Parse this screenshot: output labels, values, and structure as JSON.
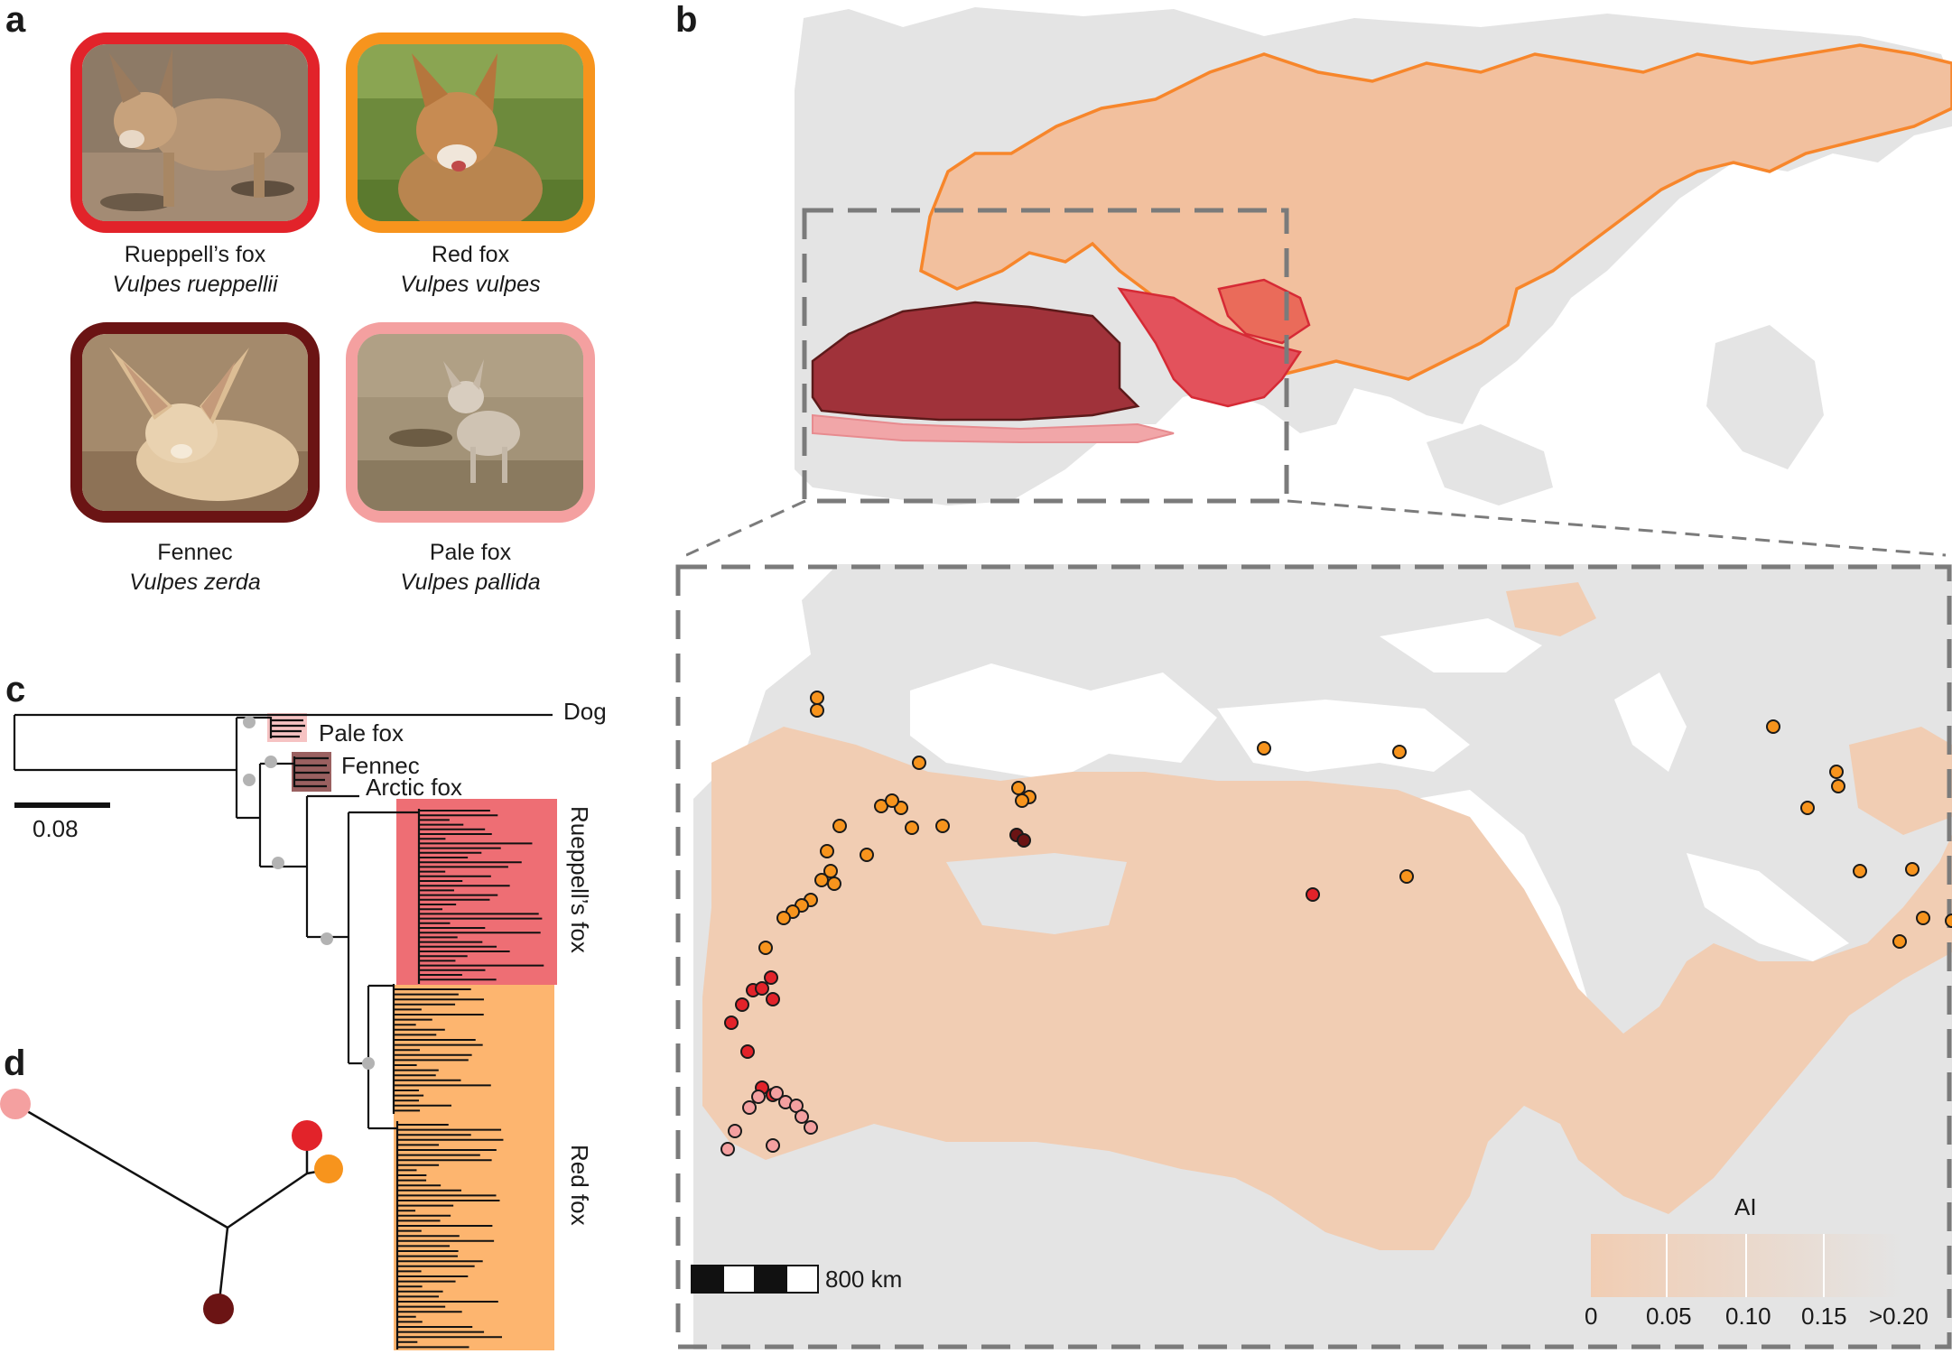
{
  "panels": {
    "a": "a",
    "b": "b",
    "c": "c",
    "d": "d"
  },
  "foxes": [
    {
      "common": "Rueppell’s fox",
      "latin": "Vulpes rueppellii",
      "border": "#e2232a"
    },
    {
      "common": "Red fox",
      "latin": "Vulpes vulpes",
      "border": "#f7941d"
    },
    {
      "common": "Fennec",
      "latin": "Vulpes zerda",
      "border": "#6b1414"
    },
    {
      "common": "Pale fox",
      "latin": "Vulpes pallida",
      "border": "#f4a0a0"
    }
  ],
  "tree": {
    "labels": {
      "dog": "Dog",
      "pale": "Pale fox",
      "fennec": "Fennec",
      "arctic": "Arctic fox",
      "rueppell": "Rueppell’s fox",
      "red": "Red fox"
    },
    "scale_label": "0.08"
  },
  "map": {
    "scale_label": "800 km",
    "legend": {
      "title": "AI",
      "ticks": [
        "0",
        "0.05",
        "0.10",
        "0.15",
        ">0.20"
      ]
    }
  },
  "colors": {
    "rueppell": "#e2232a",
    "red_fox": "#f7941d",
    "fennec": "#6b1414",
    "pale": "#f4a0a0",
    "land": "#e4e4e4",
    "arid": "#f1cdb3"
  }
}
